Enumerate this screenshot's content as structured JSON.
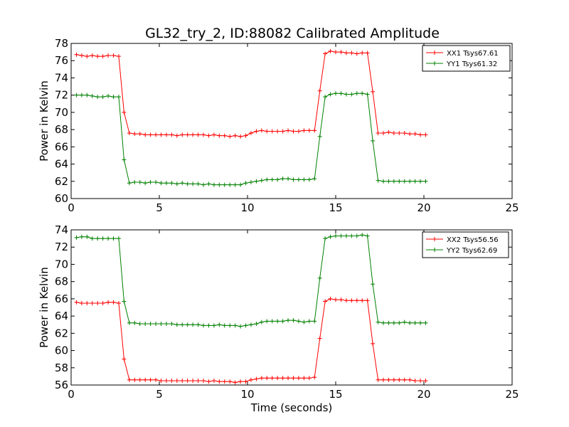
{
  "figure_title": "GL32_try_2, ID:88082 Calibrated Amplitude",
  "colors": {
    "red": "#ff0000",
    "green": "#008000"
  },
  "chart_data": [
    {
      "type": "line",
      "title": "GL32_try_2, ID:88082 Calibrated Amplitude",
      "xlabel": "",
      "ylabel": "Power in Kelvin",
      "xlim": [
        0,
        25
      ],
      "ylim": [
        60,
        78
      ],
      "xticks": [
        0,
        5,
        10,
        15,
        20,
        25
      ],
      "yticks": [
        60,
        62,
        64,
        66,
        68,
        70,
        72,
        74,
        76,
        78
      ],
      "legend_position": "top-right",
      "x": [
        0.3,
        0.6,
        0.9,
        1.2,
        1.5,
        1.8,
        2.1,
        2.4,
        2.7,
        3.0,
        3.3,
        3.6,
        3.9,
        4.2,
        4.5,
        4.8,
        5.1,
        5.4,
        5.7,
        6.0,
        6.3,
        6.6,
        6.9,
        7.2,
        7.5,
        7.8,
        8.1,
        8.4,
        8.7,
        9.0,
        9.3,
        9.6,
        9.9,
        10.2,
        10.5,
        10.8,
        11.1,
        11.4,
        11.7,
        12.0,
        12.3,
        12.6,
        12.9,
        13.2,
        13.5,
        13.8,
        14.1,
        14.4,
        14.7,
        15.0,
        15.3,
        15.6,
        15.9,
        16.2,
        16.5,
        16.8,
        17.1,
        17.4,
        17.7,
        18.0,
        18.3,
        18.6,
        18.9,
        19.2,
        19.5,
        19.8,
        20.1
      ],
      "series": [
        {
          "name": "XX1 Tsys67.61",
          "color": "#ff0000",
          "values": [
            76.7,
            76.6,
            76.5,
            76.6,
            76.5,
            76.5,
            76.6,
            76.6,
            76.5,
            70.0,
            67.6,
            67.5,
            67.5,
            67.4,
            67.4,
            67.4,
            67.4,
            67.4,
            67.4,
            67.3,
            67.4,
            67.4,
            67.4,
            67.4,
            67.4,
            67.3,
            67.4,
            67.3,
            67.3,
            67.2,
            67.3,
            67.2,
            67.3,
            67.6,
            67.8,
            67.9,
            67.8,
            67.8,
            67.8,
            67.8,
            67.9,
            67.8,
            67.8,
            67.9,
            67.9,
            67.9,
            72.5,
            76.8,
            77.1,
            77.0,
            77.0,
            76.9,
            76.9,
            76.8,
            76.9,
            76.9,
            72.4,
            67.6,
            67.6,
            67.7,
            67.6,
            67.6,
            67.6,
            67.5,
            67.5,
            67.4,
            67.4
          ]
        },
        {
          "name": "YY1 Tsys61.32",
          "color": "#008000",
          "values": [
            72.0,
            72.0,
            72.0,
            71.9,
            71.8,
            71.8,
            71.9,
            71.8,
            71.8,
            64.5,
            61.8,
            61.9,
            61.9,
            61.8,
            61.9,
            61.9,
            61.8,
            61.8,
            61.8,
            61.7,
            61.8,
            61.7,
            61.7,
            61.7,
            61.6,
            61.7,
            61.6,
            61.6,
            61.6,
            61.6,
            61.6,
            61.6,
            61.8,
            61.9,
            62.0,
            62.1,
            62.2,
            62.2,
            62.2,
            62.3,
            62.3,
            62.2,
            62.2,
            62.2,
            62.2,
            62.3,
            67.2,
            71.8,
            72.1,
            72.2,
            72.2,
            72.1,
            72.1,
            72.2,
            72.2,
            72.1,
            66.7,
            62.1,
            62.0,
            62.0,
            62.0,
            62.0,
            62.0,
            62.0,
            62.0,
            62.0,
            62.0
          ]
        }
      ]
    },
    {
      "type": "line",
      "title": "",
      "xlabel": "Time (seconds)",
      "ylabel": "Power in Kelvin",
      "xlim": [
        0,
        25
      ],
      "ylim": [
        56,
        74
      ],
      "xticks": [
        0,
        5,
        10,
        15,
        20,
        25
      ],
      "yticks": [
        56,
        58,
        60,
        62,
        64,
        66,
        68,
        70,
        72,
        74
      ],
      "legend_position": "top-right",
      "x": [
        0.3,
        0.6,
        0.9,
        1.2,
        1.5,
        1.8,
        2.1,
        2.4,
        2.7,
        3.0,
        3.3,
        3.6,
        3.9,
        4.2,
        4.5,
        4.8,
        5.1,
        5.4,
        5.7,
        6.0,
        6.3,
        6.6,
        6.9,
        7.2,
        7.5,
        7.8,
        8.1,
        8.4,
        8.7,
        9.0,
        9.3,
        9.6,
        9.9,
        10.2,
        10.5,
        10.8,
        11.1,
        11.4,
        11.7,
        12.0,
        12.3,
        12.6,
        12.9,
        13.2,
        13.5,
        13.8,
        14.1,
        14.4,
        14.7,
        15.0,
        15.3,
        15.6,
        15.9,
        16.2,
        16.5,
        16.8,
        17.1,
        17.4,
        17.7,
        18.0,
        18.3,
        18.6,
        18.9,
        19.2,
        19.5,
        19.8,
        20.1
      ],
      "series": [
        {
          "name": "XX2 Tsys56.56",
          "color": "#ff0000",
          "values": [
            65.6,
            65.5,
            65.5,
            65.5,
            65.5,
            65.5,
            65.6,
            65.6,
            65.5,
            59.0,
            56.6,
            56.6,
            56.6,
            56.6,
            56.6,
            56.6,
            56.5,
            56.5,
            56.5,
            56.5,
            56.5,
            56.5,
            56.5,
            56.5,
            56.5,
            56.4,
            56.5,
            56.4,
            56.4,
            56.4,
            56.3,
            56.4,
            56.4,
            56.6,
            56.7,
            56.8,
            56.8,
            56.8,
            56.8,
            56.8,
            56.8,
            56.8,
            56.8,
            56.8,
            56.8,
            56.9,
            61.4,
            65.7,
            66.0,
            65.9,
            65.9,
            65.8,
            65.8,
            65.8,
            65.8,
            65.8,
            60.8,
            56.6,
            56.6,
            56.6,
            56.6,
            56.6,
            56.6,
            56.6,
            56.5,
            56.5,
            56.5
          ]
        },
        {
          "name": "YY2 Tsys62.69",
          "color": "#008000",
          "values": [
            73.1,
            73.2,
            73.2,
            73.0,
            73.0,
            73.0,
            73.0,
            73.0,
            73.0,
            65.7,
            63.2,
            63.2,
            63.1,
            63.1,
            63.1,
            63.1,
            63.1,
            63.1,
            63.1,
            63.0,
            63.0,
            63.0,
            63.0,
            63.0,
            62.9,
            62.9,
            62.9,
            63.0,
            62.9,
            62.9,
            62.9,
            62.8,
            62.9,
            63.0,
            63.1,
            63.3,
            63.4,
            63.4,
            63.4,
            63.4,
            63.5,
            63.5,
            63.4,
            63.3,
            63.4,
            63.4,
            68.4,
            73.0,
            73.2,
            73.3,
            73.3,
            73.3,
            73.3,
            73.3,
            73.4,
            73.3,
            67.7,
            63.3,
            63.2,
            63.2,
            63.2,
            63.2,
            63.3,
            63.2,
            63.2,
            63.2,
            63.2
          ]
        }
      ]
    }
  ]
}
